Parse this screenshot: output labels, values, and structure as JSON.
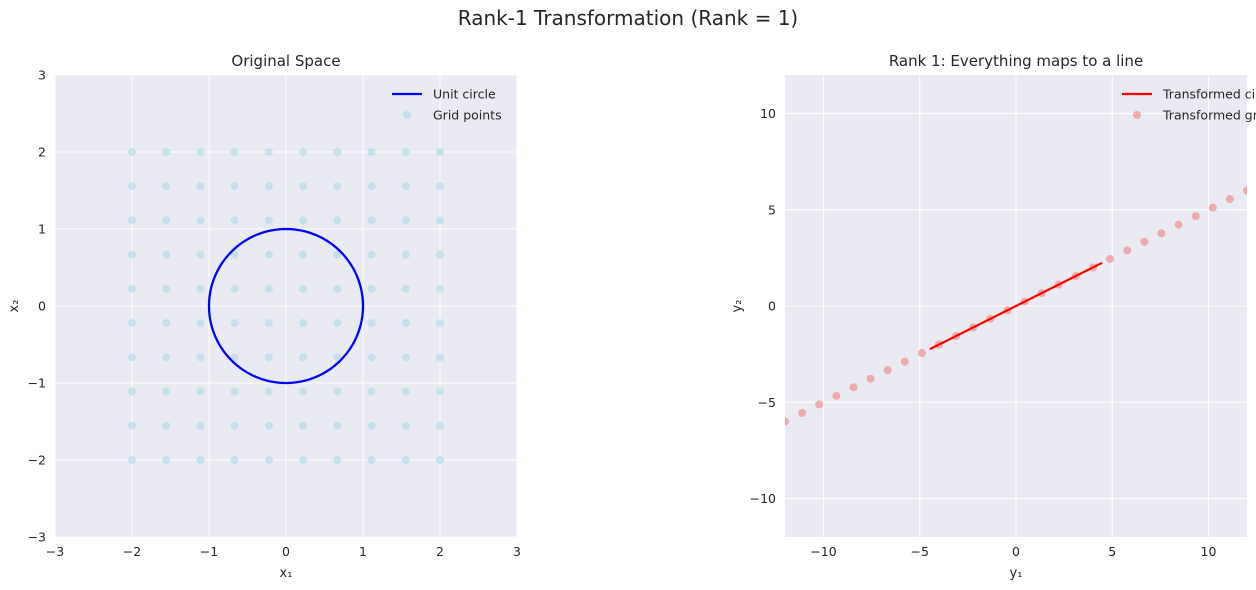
{
  "figure": {
    "suptitle": "Rank-1 Transformation (Rank = 1)"
  },
  "chart_data": [
    {
      "type": "scatter",
      "title": "Original Space",
      "xlabel": "x₁",
      "ylabel": "x₂",
      "xlim": [
        -3,
        3
      ],
      "ylim": [
        -3,
        3
      ],
      "xticks": [
        -3,
        -2,
        -1,
        0,
        1,
        2,
        3
      ],
      "yticks": [
        -3,
        -2,
        -1,
        0,
        1,
        2,
        3
      ],
      "grid": true,
      "legend_position": "top-right",
      "series": [
        {
          "name": "Unit circle",
          "kind": "line",
          "color": "#0000ff",
          "parametric": "unit_circle",
          "radius": 1,
          "center": [
            0,
            0
          ]
        },
        {
          "name": "Grid points",
          "kind": "scatter",
          "color": "#add8e6",
          "alpha": 0.6,
          "grid_axis_values": [
            -2.0,
            -1.556,
            -1.111,
            -0.667,
            -0.222,
            0.222,
            0.667,
            1.111,
            1.556,
            2.0
          ]
        }
      ]
    },
    {
      "type": "scatter",
      "title": "Rank 1: Everything maps to a line",
      "xlabel": "y₁",
      "ylabel": "y₂",
      "xlim": [
        -12,
        12
      ],
      "ylim": [
        -12,
        12
      ],
      "xticks": [
        -10,
        -5,
        0,
        5,
        10
      ],
      "yticks": [
        -10,
        -5,
        0,
        5,
        10
      ],
      "grid": true,
      "legend_position": "top-right",
      "series": [
        {
          "name": "Transformed circle",
          "kind": "line",
          "color": "#ff0000",
          "x": [
            -4.47,
            4.47
          ],
          "y": [
            -2.24,
            2.24
          ]
        },
        {
          "name": "Transformed grid",
          "kind": "scatter",
          "color": "#f08080",
          "alpha": 0.6,
          "x": [
            -12.0,
            -11.111,
            -10.222,
            -9.333,
            -8.444,
            -7.556,
            -6.667,
            -5.778,
            -4.889,
            -4.0,
            -3.111,
            -2.222,
            -1.333,
            -0.444,
            0.444,
            1.333,
            2.222,
            3.111,
            4.0,
            4.889,
            5.778,
            6.667,
            7.556,
            8.444,
            9.333,
            10.222,
            11.111,
            12.0
          ],
          "y": [
            -6.0,
            -5.556,
            -5.111,
            -4.667,
            -4.222,
            -3.778,
            -3.333,
            -2.889,
            -2.444,
            -2.0,
            -1.556,
            -1.111,
            -0.667,
            -0.222,
            0.222,
            0.667,
            1.111,
            1.556,
            2.0,
            2.444,
            2.889,
            3.333,
            3.778,
            4.222,
            4.667,
            5.111,
            5.556,
            6.0
          ]
        }
      ]
    }
  ]
}
